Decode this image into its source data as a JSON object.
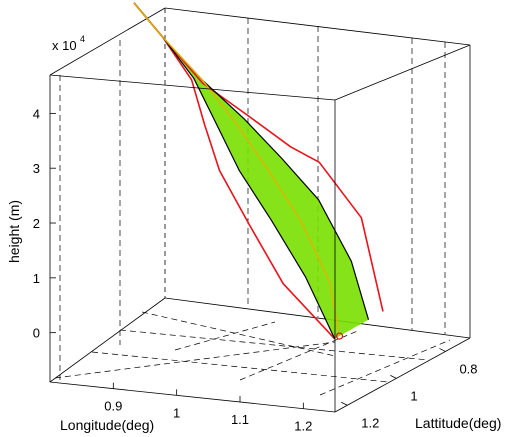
{
  "chart_data": {
    "type": "line",
    "projection": "3d",
    "axis_exponent": {
      "base": "x 10",
      "power": "4"
    },
    "xlabel": "Longitude(deg)",
    "ylabel": "Lattitude(deg)",
    "zlabel": "height (m)",
    "x_ticks": [
      "0.9",
      "1",
      "1.1",
      "1.2"
    ],
    "y_ticks": [
      "0.8",
      "1",
      "1.2"
    ],
    "z_ticks": [
      "0",
      "1",
      "2",
      "3",
      "4"
    ],
    "xlim": [
      0.8,
      1.25
    ],
    "ylim": [
      0.7,
      1.25
    ],
    "zlim": [
      -0.9,
      4.7
    ],
    "grid": true,
    "box": true,
    "colors": {
      "outer_bound": "#e8131b",
      "inner_bound": "#000000",
      "band": "#7ae000",
      "trajectory": "#e0b400",
      "impact_marker": "#e8131b"
    },
    "series": [
      {
        "role": "outer-bound-left",
        "x": [
          0.81,
          0.86,
          0.92,
          0.96,
          1.0,
          1.06,
          1.12,
          1.2
        ],
        "y": [
          0.88,
          0.9,
          0.95,
          1.01,
          1.06,
          1.1,
          1.12,
          1.12
        ],
        "z": [
          5.0,
          4.5,
          3.95,
          3.35,
          2.7,
          1.9,
          0.95,
          0.05
        ]
      },
      {
        "role": "outer-bound-right",
        "x": [
          0.81,
          0.86,
          0.93,
          1.0,
          1.06,
          1.1,
          1.16,
          1.2
        ],
        "y": [
          0.88,
          0.9,
          0.93,
          0.93,
          0.92,
          0.91,
          0.9,
          0.92
        ],
        "z": [
          5.0,
          4.5,
          3.85,
          3.35,
          2.85,
          2.6,
          1.65,
          0.05
        ]
      },
      {
        "role": "inner-bound-left",
        "x": [
          0.81,
          0.86,
          0.92,
          0.97,
          1.02,
          1.08,
          1.14,
          1.2
        ],
        "y": [
          0.88,
          0.9,
          0.94,
          0.99,
          1.03,
          1.06,
          1.08,
          1.12
        ],
        "z": [
          5.0,
          4.5,
          3.95,
          3.35,
          2.65,
          1.9,
          1.0,
          0.05
        ]
      },
      {
        "role": "inner-bound-right",
        "x": [
          0.81,
          0.86,
          0.93,
          1.0,
          1.06,
          1.12,
          1.17,
          1.2
        ],
        "y": [
          0.88,
          0.9,
          0.93,
          0.95,
          0.96,
          0.97,
          0.97,
          0.98
        ],
        "z": [
          5.0,
          4.5,
          3.9,
          3.35,
          2.75,
          2.1,
          1.05,
          0.05
        ]
      },
      {
        "role": "mean-trajectory",
        "x": [
          0.81,
          0.86,
          0.93,
          0.99,
          1.05,
          1.11,
          1.17,
          1.2
        ],
        "y": [
          0.88,
          0.9,
          0.93,
          0.96,
          0.99,
          1.02,
          1.06,
          1.1
        ],
        "z": [
          5.0,
          4.5,
          3.9,
          3.3,
          2.6,
          1.85,
          0.9,
          0.05
        ]
      }
    ],
    "impact_point": {
      "x": 1.2,
      "y": 1.1,
      "z": 0.05
    }
  }
}
